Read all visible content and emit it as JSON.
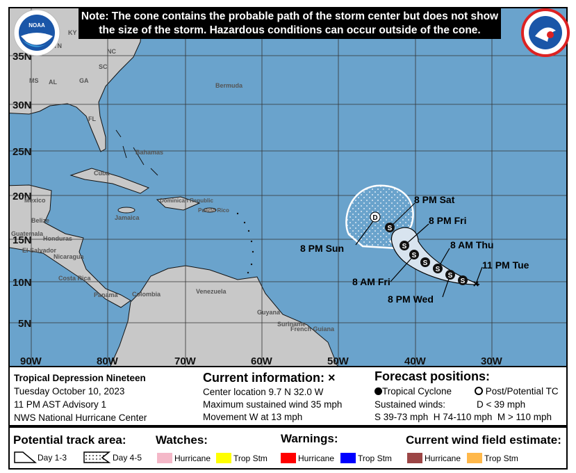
{
  "note": {
    "line1": "Note: The cone contains the probable path of the storm center but does not show",
    "line2": "the size of the storm. Hazardous conditions can occur outside of the cone."
  },
  "logos": {
    "left": "NOAA",
    "right": "NATIONAL WEATHER SERVICE"
  },
  "map": {
    "lat_labels": [
      "35N",
      "30N",
      "25N",
      "20N",
      "15N",
      "10N",
      "5N"
    ],
    "lon_labels": [
      "90W",
      "80W",
      "70W",
      "60W",
      "50W",
      "40W",
      "30W"
    ],
    "place_labels": [
      "KY",
      "TN",
      "NC",
      "SC",
      "MS",
      "AL",
      "GA",
      "FL",
      "Bermuda",
      "Bahamas",
      "Cuba",
      "Mexico",
      "Belize",
      "Guatemala",
      "Honduras",
      "El Salvador",
      "Nicaragua",
      "Costa Rica",
      "Panama",
      "Colombia",
      "Venezuela",
      "Guyana",
      "Suriname",
      "French Guiana",
      "Jamaica",
      "Dominican Republic",
      "Puerto Rico"
    ],
    "track_labels": {
      "sun": "8 PM Sun",
      "sat": "8 PM Sat",
      "fri_pm": "8 PM Fri",
      "thu_am": "8 AM Thu",
      "tue": "11 PM Tue",
      "fri_am": "8 AM Fri",
      "wed_pm": "8 PM Wed"
    },
    "track_points": [
      "S",
      "S",
      "S",
      "S",
      "S",
      "S",
      "S",
      "D"
    ],
    "colors": {
      "ocean": "#6aa3cc",
      "land": "#c8c8c8",
      "cone": "#d8e4ef"
    }
  },
  "info": {
    "storm_name": "Tropical Depression Nineteen",
    "date": "Tuesday October 10, 2023",
    "advisory": "11 PM AST Advisory 1",
    "center": "NWS National Hurricane Center",
    "current_title": "Current information: ×",
    "location": "Center location 9.7 N 32.0 W",
    "wind": "Maximum sustained wind 35 mph",
    "movement": "Movement W at 13 mph",
    "forecast_title": "Forecast positions:",
    "tc": "Tropical Cyclone",
    "ptc": "Post/Potential TC",
    "sustained": "Sustained winds:",
    "d": "D < 39 mph",
    "shm": "S 39-73 mph  H 74-110 mph  M > 110 mph"
  },
  "legend": {
    "track_title": "Potential track area:",
    "day13": "Day 1-3",
    "day45": "Day 4-5",
    "watches_title": "Watches:",
    "warnings_title": "Warnings:",
    "wind_title": "Current wind field estimate:",
    "hurricane": "Hurricane",
    "tropstm": "Trop Stm",
    "colors": {
      "watch_hurricane": "#f4b8c8",
      "watch_trop": "#ffff00",
      "warn_hurricane": "#ff0000",
      "warn_trop": "#0000ff",
      "wind_hurricane": "#9c4646",
      "wind_trop": "#ffb84a"
    }
  }
}
